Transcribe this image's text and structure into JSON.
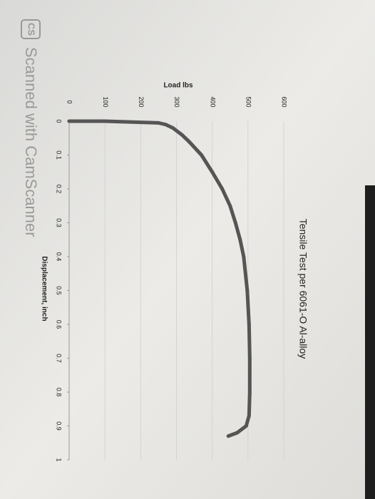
{
  "watermark": {
    "logo": "CS",
    "text": "Scanned with CamScanner"
  },
  "chart_data": {
    "type": "line",
    "title": "Tensile Test per 6061-O Al-alloy",
    "x_label": "Displacement, inch",
    "y_label": "Load lbs",
    "x": [
      0,
      0,
      0.005,
      0.01,
      0.02,
      0.04,
      0.06,
      0.1,
      0.15,
      0.2,
      0.25,
      0.3,
      0.35,
      0.4,
      0.5,
      0.6,
      0.7,
      0.8,
      0.87,
      0.9,
      0.92,
      0.93
    ],
    "series": [
      {
        "name": "Load",
        "color": "#555555",
        "values": [
          0,
          100,
          250,
          270,
          290,
          315,
          335,
          370,
          400,
          428,
          450,
          465,
          478,
          488,
          498,
          503,
          505,
          505,
          503,
          495,
          470,
          445
        ]
      }
    ],
    "xlim": [
      0,
      1
    ],
    "xticks": [
      0,
      0.1,
      0.2,
      0.3,
      0.4,
      0.5,
      0.6,
      0.7,
      0.8,
      0.9,
      1
    ],
    "ylim": [
      0,
      600
    ],
    "yticks": [
      0,
      100,
      200,
      300,
      400,
      500,
      600
    ],
    "grid": true
  }
}
